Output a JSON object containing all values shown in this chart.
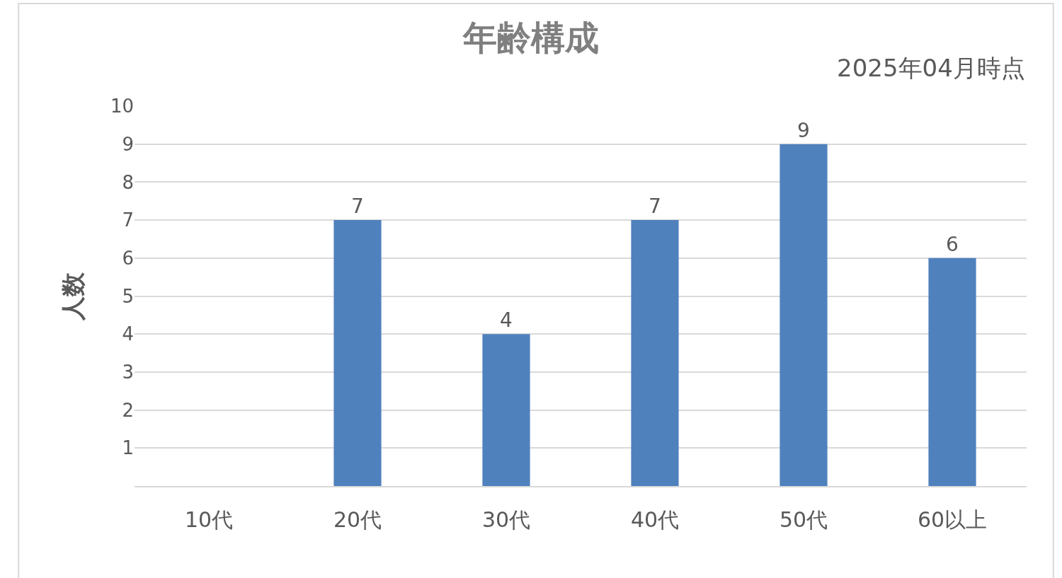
{
  "chart_data": {
    "type": "bar",
    "title": "年齢構成",
    "subtitle": "2025年04月時点",
    "ylabel": "人数",
    "categories": [
      "10代",
      "20代",
      "30代",
      "40代",
      "50代",
      "60以上"
    ],
    "values": [
      0,
      7,
      4,
      7,
      9,
      6
    ],
    "value_labels": [
      null,
      "7",
      "4",
      "7",
      "9",
      "6"
    ],
    "color": "#4f81bd",
    "ylim": [
      0,
      10
    ],
    "yticks": [
      1,
      2,
      3,
      4,
      5,
      6,
      7,
      8,
      9,
      10
    ],
    "grid": "y",
    "legend": false
  }
}
